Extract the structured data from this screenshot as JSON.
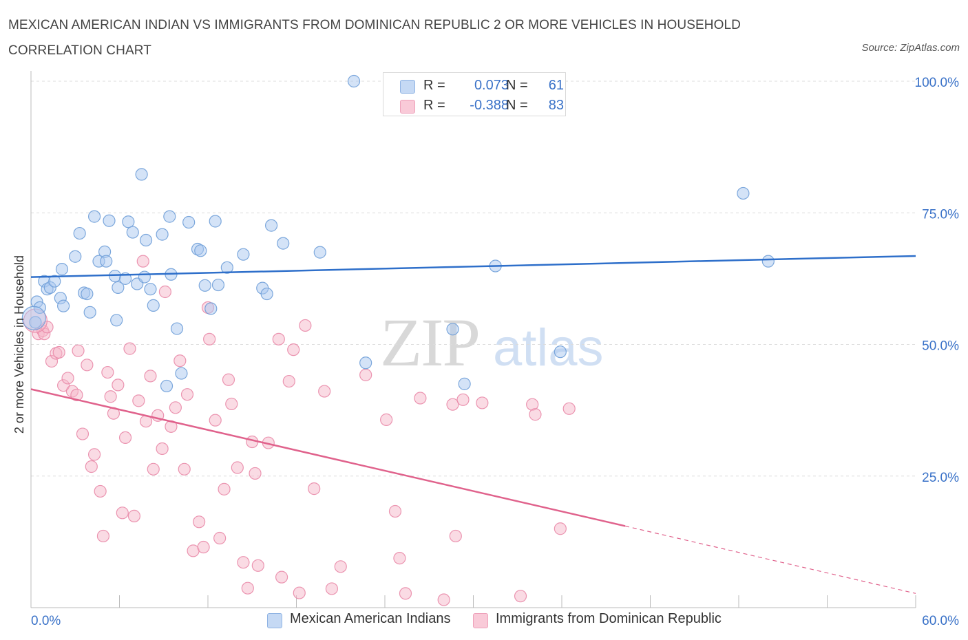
{
  "title": "MEXICAN AMERICAN INDIAN VS IMMIGRANTS FROM DOMINICAN REPUBLIC 2 OR MORE VEHICLES IN HOUSEHOLD CORRELATION CHART",
  "source": "Source: ZipAtlas.com",
  "watermark": {
    "zip": "ZIP",
    "atlas": "atlas"
  },
  "legend": {
    "rows": [
      {
        "r_label": "R =",
        "r_value": "0.073",
        "n_label": "N =",
        "n_value": "61",
        "color": "#a9c7ef"
      },
      {
        "r_label": "R =",
        "r_value": "-0.388",
        "n_label": "N =",
        "n_value": "83",
        "color": "#f6b7c9"
      }
    ]
  },
  "bottom_legend": [
    {
      "label": "Mexican American Indians",
      "color": "#a9c7ef"
    },
    {
      "label": "Immigrants from Dominican Republic",
      "color": "#f6b7c9"
    }
  ],
  "chart_data": {
    "type": "scatter",
    "xlabel": "",
    "ylabel": "2 or more Vehicles in Household",
    "xlim": [
      0,
      60
    ],
    "ylim": [
      0,
      100
    ],
    "x_tick_labels": [
      "0.0%",
      "60.0%"
    ],
    "y_tick_values": [
      25,
      50,
      75,
      100
    ],
    "y_tick_labels": [
      "25.0%",
      "50.0%",
      "75.0%",
      "100.0%"
    ],
    "grid": true,
    "colors": {
      "blue_fill": "#a9c7ef",
      "blue_stroke": "#6f9fd8",
      "blue_line": "#2e6fca",
      "pink_fill": "#f6b7c9",
      "pink_stroke": "#e98aa8",
      "pink_line": "#e0628c",
      "tick_text": "#3a72c8"
    },
    "series": [
      {
        "name": "Mexican American Indians",
        "trend": {
          "x": [
            0,
            60
          ],
          "y": [
            62.8,
            66.8
          ]
        },
        "points": [
          [
            0.4,
            58.1
          ],
          [
            0.6,
            57.0
          ],
          [
            0.3,
            54.2
          ],
          [
            0.9,
            62.0
          ],
          [
            1.1,
            60.5
          ],
          [
            1.3,
            60.8
          ],
          [
            1.6,
            62.0
          ],
          [
            2.0,
            58.8
          ],
          [
            2.2,
            57.3
          ],
          [
            2.1,
            64.3
          ],
          [
            3.0,
            66.7
          ],
          [
            3.3,
            71.1
          ],
          [
            3.6,
            59.8
          ],
          [
            3.8,
            59.6
          ],
          [
            4.0,
            56.1
          ],
          [
            4.3,
            74.3
          ],
          [
            4.6,
            65.8
          ],
          [
            5.0,
            67.6
          ],
          [
            5.1,
            65.8
          ],
          [
            5.3,
            73.5
          ],
          [
            5.7,
            63.0
          ],
          [
            5.9,
            60.8
          ],
          [
            5.8,
            54.6
          ],
          [
            6.4,
            62.5
          ],
          [
            6.6,
            73.3
          ],
          [
            6.9,
            71.3
          ],
          [
            7.2,
            61.5
          ],
          [
            7.5,
            82.3
          ],
          [
            7.7,
            62.8
          ],
          [
            7.8,
            69.8
          ],
          [
            8.1,
            60.5
          ],
          [
            8.3,
            57.4
          ],
          [
            8.9,
            70.9
          ],
          [
            9.2,
            42.1
          ],
          [
            9.4,
            74.3
          ],
          [
            9.5,
            63.3
          ],
          [
            9.9,
            53.0
          ],
          [
            10.2,
            44.5
          ],
          [
            10.7,
            73.2
          ],
          [
            11.3,
            68.1
          ],
          [
            11.5,
            67.8
          ],
          [
            11.8,
            61.2
          ],
          [
            12.2,
            56.8
          ],
          [
            12.5,
            73.4
          ],
          [
            12.7,
            61.3
          ],
          [
            13.3,
            64.6
          ],
          [
            14.4,
            67.1
          ],
          [
            15.7,
            60.7
          ],
          [
            16.0,
            59.6
          ],
          [
            16.3,
            72.6
          ],
          [
            17.1,
            69.2
          ],
          [
            19.6,
            67.5
          ],
          [
            21.9,
            100.0
          ],
          [
            22.7,
            46.5
          ],
          [
            28.6,
            52.9
          ],
          [
            29.4,
            42.5
          ],
          [
            31.5,
            64.9
          ],
          [
            35.9,
            48.6
          ],
          [
            48.3,
            78.7
          ],
          [
            50.0,
            65.8
          ],
          [
            0.2,
            55.0
          ]
        ]
      },
      {
        "name": "Immigrants from Dominican Republic",
        "trend": {
          "x": [
            0,
            40.3
          ],
          "y": [
            41.5,
            15.5
          ],
          "dashed_to": {
            "x": 60,
            "y": 2.7
          }
        },
        "points": [
          [
            0.5,
            52.0
          ],
          [
            0.8,
            52.6
          ],
          [
            0.9,
            52.0
          ],
          [
            1.1,
            53.3
          ],
          [
            1.4,
            46.8
          ],
          [
            1.7,
            48.3
          ],
          [
            1.9,
            48.5
          ],
          [
            2.2,
            42.2
          ],
          [
            2.5,
            43.6
          ],
          [
            2.8,
            41.1
          ],
          [
            3.1,
            40.4
          ],
          [
            3.2,
            48.8
          ],
          [
            3.5,
            33.0
          ],
          [
            3.8,
            46.1
          ],
          [
            4.1,
            26.8
          ],
          [
            4.3,
            29.1
          ],
          [
            4.7,
            22.1
          ],
          [
            4.9,
            13.6
          ],
          [
            5.2,
            44.7
          ],
          [
            5.4,
            40.1
          ],
          [
            5.6,
            36.9
          ],
          [
            5.9,
            42.3
          ],
          [
            6.2,
            18.0
          ],
          [
            6.4,
            32.3
          ],
          [
            6.7,
            49.2
          ],
          [
            7.0,
            17.4
          ],
          [
            7.3,
            39.3
          ],
          [
            7.6,
            65.8
          ],
          [
            7.8,
            35.4
          ],
          [
            8.1,
            44.0
          ],
          [
            8.3,
            26.3
          ],
          [
            8.6,
            36.5
          ],
          [
            8.9,
            30.2
          ],
          [
            9.1,
            60.0
          ],
          [
            9.5,
            34.4
          ],
          [
            9.8,
            38.0
          ],
          [
            10.1,
            46.9
          ],
          [
            10.4,
            26.3
          ],
          [
            10.6,
            40.5
          ],
          [
            11.0,
            10.8
          ],
          [
            11.4,
            16.3
          ],
          [
            11.7,
            11.5
          ],
          [
            12.0,
            57.0
          ],
          [
            12.1,
            51.0
          ],
          [
            12.5,
            35.6
          ],
          [
            12.8,
            13.2
          ],
          [
            13.1,
            22.5
          ],
          [
            13.4,
            43.3
          ],
          [
            13.6,
            38.7
          ],
          [
            14.0,
            26.6
          ],
          [
            14.4,
            8.6
          ],
          [
            14.7,
            3.7
          ],
          [
            15.0,
            31.5
          ],
          [
            15.2,
            25.5
          ],
          [
            15.4,
            8.0
          ],
          [
            16.1,
            31.3
          ],
          [
            16.8,
            51.0
          ],
          [
            17.0,
            5.8
          ],
          [
            17.5,
            43.0
          ],
          [
            17.8,
            49.0
          ],
          [
            18.2,
            2.8
          ],
          [
            18.6,
            53.6
          ],
          [
            19.2,
            22.6
          ],
          [
            19.9,
            41.1
          ],
          [
            20.4,
            3.6
          ],
          [
            21.0,
            7.8
          ],
          [
            22.7,
            44.2
          ],
          [
            24.1,
            35.7
          ],
          [
            24.7,
            18.3
          ],
          [
            25.0,
            9.4
          ],
          [
            25.4,
            2.7
          ],
          [
            26.4,
            39.8
          ],
          [
            28.0,
            1.5
          ],
          [
            28.6,
            38.6
          ],
          [
            28.8,
            13.6
          ],
          [
            29.3,
            39.5
          ],
          [
            30.6,
            38.9
          ],
          [
            33.2,
            2.2
          ],
          [
            34.0,
            38.6
          ],
          [
            34.2,
            36.7
          ],
          [
            35.9,
            15.0
          ],
          [
            36.5,
            37.8
          ],
          [
            0.3,
            54.5
          ]
        ]
      }
    ]
  }
}
